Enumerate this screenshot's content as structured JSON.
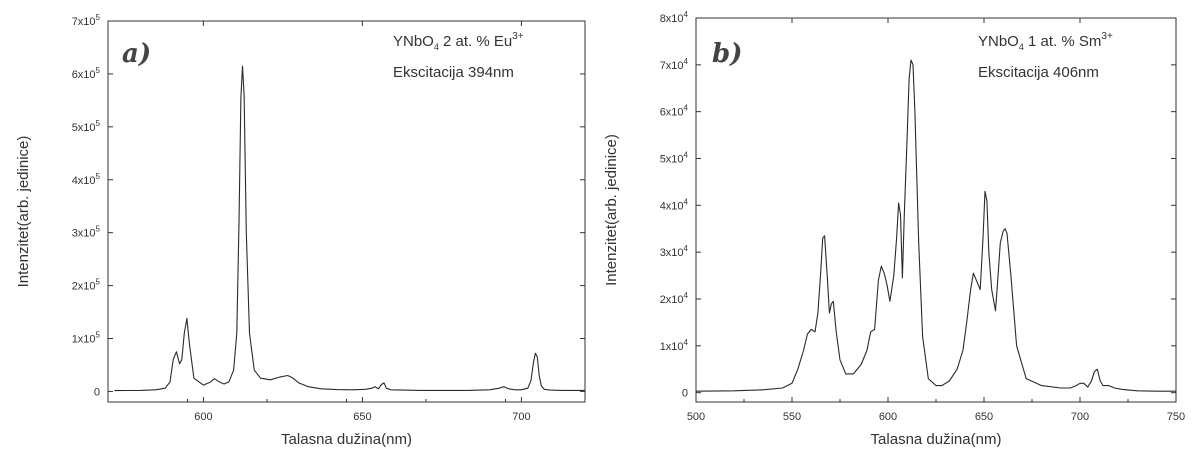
{
  "chart_data": [
    {
      "type": "line",
      "panel_label": "a)",
      "annotation": {
        "material": "YNbO",
        "material_sub": "4",
        "dopant": " 2 at. % Eu",
        "dopant_sup": "3+",
        "excitation": "Ekscitacija 394nm"
      },
      "xlabel": "Talasna dužina(nm)",
      "ylabel": "Intenzitet(arb. jedinice)",
      "xlim": [
        570,
        720
      ],
      "ylim": [
        -20000,
        700000
      ],
      "x_ticks": [
        600,
        650,
        700
      ],
      "x_tick_labels": [
        "600",
        "650",
        "700"
      ],
      "y_ticks": [
        0,
        100000,
        200000,
        300000,
        400000,
        500000,
        600000,
        700000
      ],
      "y_tick_labels": [
        {
          "base": "0",
          "exp": ""
        },
        {
          "base": "1x10",
          "exp": "5"
        },
        {
          "base": "2x10",
          "exp": "5"
        },
        {
          "base": "3x10",
          "exp": "5"
        },
        {
          "base": "4x10",
          "exp": "5"
        },
        {
          "base": "5x10",
          "exp": "5"
        },
        {
          "base": "6x10",
          "exp": "5"
        },
        {
          "base": "7x10",
          "exp": "5"
        }
      ],
      "series": [
        {
          "x": [
            572,
            580,
            585,
            588,
            589.5,
            590.5,
            591.5,
            592.5,
            593.2,
            594,
            594.8,
            595.6,
            597,
            600,
            602,
            603.5,
            605,
            606.5,
            608,
            609.5,
            610.5,
            611.2,
            611.8,
            612.3,
            612.8,
            613.5,
            614.5,
            616,
            618,
            621,
            624,
            626.5,
            628,
            630,
            633,
            637,
            642,
            647,
            651,
            653,
            654,
            655,
            656,
            656.8,
            657.5,
            659,
            663,
            668,
            675,
            683,
            690,
            693,
            694.5,
            696,
            698,
            700,
            702,
            703,
            703.8,
            704.4,
            705,
            705.6,
            706.3,
            707.2,
            709,
            713,
            720
          ],
          "y": [
            1500,
            2000,
            3000,
            6000,
            18000,
            60000,
            75000,
            52000,
            60000,
            110000,
            138000,
            90000,
            25000,
            12000,
            17000,
            24000,
            18000,
            14000,
            18000,
            40000,
            110000,
            320000,
            555000,
            615000,
            560000,
            300000,
            110000,
            40000,
            25000,
            22000,
            27000,
            30000,
            26000,
            16000,
            9000,
            5000,
            3500,
            3000,
            4000,
            6000,
            9000,
            5000,
            13000,
            16000,
            6000,
            3000,
            2500,
            2000,
            2000,
            2000,
            3000,
            6000,
            9000,
            5000,
            3000,
            3000,
            6000,
            20000,
            55000,
            72000,
            65000,
            30000,
            10000,
            4000,
            2500,
            2000,
            2000
          ]
        }
      ]
    },
    {
      "type": "line",
      "panel_label": "b)",
      "annotation": {
        "material": "YNbO",
        "material_sub": "4",
        "dopant": " 1 at. % Sm",
        "dopant_sup": "3+",
        "excitation": "Ekscitacija 406nm"
      },
      "xlabel": "Talasna dužina(nm)",
      "ylabel": "Intenzitet(arb. jedinice)",
      "xlim": [
        500,
        750
      ],
      "ylim": [
        -2000,
        80000
      ],
      "x_ticks": [
        500,
        550,
        600,
        650,
        700,
        750
      ],
      "x_tick_labels": [
        "500",
        "550",
        "600",
        "650",
        "700",
        "750"
      ],
      "y_ticks": [
        0,
        10000,
        20000,
        30000,
        40000,
        50000,
        60000,
        70000,
        80000
      ],
      "y_tick_labels": [
        {
          "base": "0",
          "exp": ""
        },
        {
          "base": "1x10",
          "exp": "4"
        },
        {
          "base": "2x10",
          "exp": "4"
        },
        {
          "base": "3x10",
          "exp": "4"
        },
        {
          "base": "4x10",
          "exp": "4"
        },
        {
          "base": "5x10",
          "exp": "4"
        },
        {
          "base": "6x10",
          "exp": "4"
        },
        {
          "base": "7x10",
          "exp": "4"
        },
        {
          "base": "8x10",
          "exp": "4"
        }
      ],
      "series": [
        {
          "x": [
            500,
            520,
            535,
            545,
            550,
            553,
            556,
            558,
            560,
            562,
            563.5,
            565,
            566,
            567,
            568.5,
            569.5,
            570.5,
            571.5,
            573,
            575,
            578,
            582,
            586,
            589,
            591,
            593,
            595,
            596.5,
            598,
            599.5,
            601,
            603,
            604.5,
            605.5,
            606.5,
            607.5,
            608.5,
            610,
            611,
            612,
            613,
            614,
            616,
            618,
            621,
            625,
            628,
            632,
            636,
            639,
            641,
            643,
            644.5,
            646,
            648,
            649.5,
            650.5,
            651.5,
            652.5,
            654,
            656,
            657,
            658.5,
            660,
            661,
            662,
            664,
            667,
            672,
            680,
            690,
            695,
            698,
            700,
            702,
            704,
            706,
            707.5,
            709,
            710.5,
            712,
            715,
            718,
            722,
            730,
            740,
            750
          ],
          "y": [
            300,
            400,
            600,
            1000,
            2000,
            5000,
            9000,
            12500,
            13500,
            13000,
            17000,
            26000,
            33000,
            33500,
            24000,
            17000,
            19000,
            19500,
            13000,
            7000,
            4000,
            4000,
            6000,
            9000,
            13000,
            13500,
            24000,
            27000,
            25500,
            23000,
            19500,
            25000,
            33000,
            40500,
            38000,
            24500,
            38000,
            55000,
            67000,
            71000,
            70000,
            60000,
            32000,
            12000,
            3000,
            1500,
            1500,
            2500,
            5000,
            9000,
            15000,
            22000,
            25500,
            24000,
            22000,
            33000,
            43000,
            41000,
            30000,
            22000,
            17500,
            23000,
            32000,
            34500,
            35000,
            34000,
            25000,
            10000,
            3000,
            1500,
            1000,
            1000,
            1500,
            2000,
            2000,
            1200,
            2500,
            4500,
            5000,
            2500,
            1500,
            1500,
            1000,
            700,
            400,
            300,
            300
          ]
        }
      ]
    }
  ]
}
